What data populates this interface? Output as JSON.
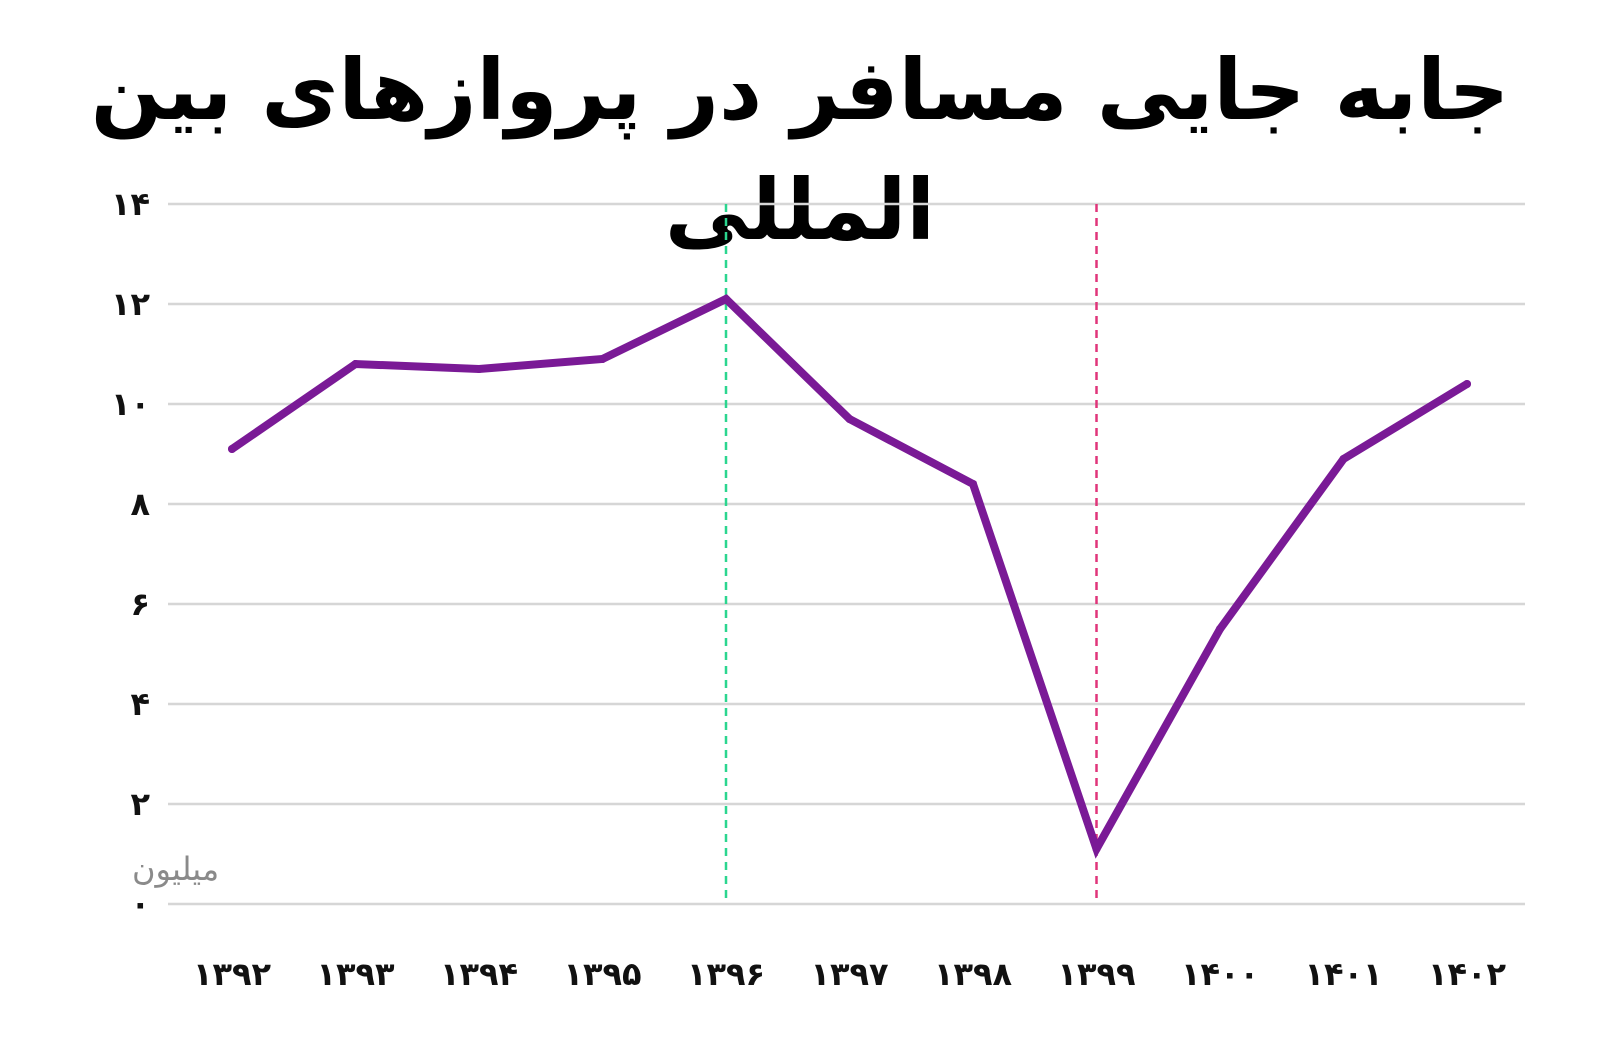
{
  "chart_data": {
    "type": "line",
    "title": "جابه جایی مسافر در پروازهای بین المللی",
    "unit_label": "میلیون",
    "categories": [
      "۱۳۹۲",
      "۱۳۹۳",
      "۱۳۹۴",
      "۱۳۹۵",
      "۱۳۹۶",
      "۱۳۹۷",
      "۱۳۹۸",
      "۱۳۹۹",
      "۱۴۰۰",
      "۱۴۰۱",
      "۱۴۰۲"
    ],
    "series": [
      {
        "values": [
          9.1,
          10.8,
          10.7,
          10.9,
          12.1,
          9.7,
          8.4,
          1.1,
          5.5,
          8.9,
          10.4
        ],
        "color": "#7a1a96"
      }
    ],
    "y_ticks": [
      {
        "value": 0,
        "label": "۰"
      },
      {
        "value": 2,
        "label": "۲"
      },
      {
        "value": 4,
        "label": "۴"
      },
      {
        "value": 6,
        "label": "۶"
      },
      {
        "value": 8,
        "label": "۸"
      },
      {
        "value": 10,
        "label": "۱۰"
      },
      {
        "value": 12,
        "label": "۱۲"
      },
      {
        "value": 14,
        "label": "۱۴"
      }
    ],
    "ylim": [
      0,
      14
    ],
    "grid": true,
    "grid_color": "#d6d6d6",
    "reference_lines": [
      {
        "category": "۱۳۹۶",
        "color": "#2bd68f",
        "style": "dashed"
      },
      {
        "category": "۱۳۹۹",
        "color": "#e0357a",
        "style": "dashed"
      }
    ]
  }
}
